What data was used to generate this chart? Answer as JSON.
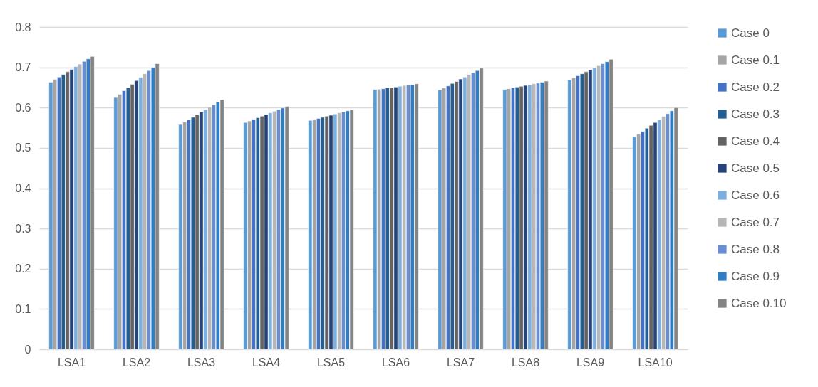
{
  "chart_data": {
    "type": "bar",
    "categories": [
      "LSA1",
      "LSA2",
      "LSA3",
      "LSA4",
      "LSA5",
      "LSA6",
      "LSA7",
      "LSA8",
      "LSA9",
      "LSA10"
    ],
    "series": [
      {
        "name": "Case 0",
        "color": "#5b9bd5",
        "values": [
          0.663,
          0.625,
          0.558,
          0.563,
          0.568,
          0.645,
          0.644,
          0.645,
          0.669,
          0.527
        ]
      },
      {
        "name": "Case 0.1",
        "color": "#a5a5a5",
        "values": [
          0.67,
          0.633,
          0.564,
          0.567,
          0.571,
          0.646,
          0.649,
          0.647,
          0.674,
          0.534
        ]
      },
      {
        "name": "Case 0.2",
        "color": "#4472c4",
        "values": [
          0.676,
          0.642,
          0.57,
          0.571,
          0.573,
          0.647,
          0.654,
          0.649,
          0.679,
          0.541
        ]
      },
      {
        "name": "Case 0.3",
        "color": "#255e91",
        "values": [
          0.682,
          0.65,
          0.576,
          0.575,
          0.576,
          0.649,
          0.66,
          0.651,
          0.684,
          0.549
        ]
      },
      {
        "name": "Case 0.4",
        "color": "#636363",
        "values": [
          0.689,
          0.658,
          0.582,
          0.579,
          0.579,
          0.65,
          0.665,
          0.653,
          0.689,
          0.556
        ]
      },
      {
        "name": "Case 0.5",
        "color": "#264478",
        "values": [
          0.695,
          0.667,
          0.589,
          0.583,
          0.581,
          0.651,
          0.671,
          0.655,
          0.694,
          0.563
        ]
      },
      {
        "name": "Case 0.6",
        "color": "#7cafdd",
        "values": [
          0.702,
          0.675,
          0.595,
          0.587,
          0.584,
          0.653,
          0.676,
          0.657,
          0.699,
          0.57
        ]
      },
      {
        "name": "Case 0.7",
        "color": "#b7b7b7",
        "values": [
          0.708,
          0.684,
          0.601,
          0.591,
          0.587,
          0.655,
          0.682,
          0.659,
          0.704,
          0.578
        ]
      },
      {
        "name": "Case 0.8",
        "color": "#698ed0",
        "values": [
          0.715,
          0.692,
          0.607,
          0.595,
          0.589,
          0.656,
          0.687,
          0.661,
          0.709,
          0.585
        ]
      },
      {
        "name": "Case 0.9",
        "color": "#327dc2",
        "values": [
          0.721,
          0.7,
          0.614,
          0.599,
          0.592,
          0.657,
          0.692,
          0.663,
          0.714,
          0.592
        ]
      },
      {
        "name": "Case 0.10",
        "color": "#848484",
        "values": [
          0.727,
          0.709,
          0.62,
          0.603,
          0.595,
          0.659,
          0.698,
          0.666,
          0.72,
          0.6
        ]
      }
    ],
    "ylim": [
      0,
      0.8
    ],
    "yticks": [
      {
        "value": 0,
        "label": "0"
      },
      0.1,
      0.2,
      0.3,
      0.4,
      0.5,
      0.6,
      0.7,
      0.8
    ],
    "grid": "y",
    "legend": "right"
  }
}
